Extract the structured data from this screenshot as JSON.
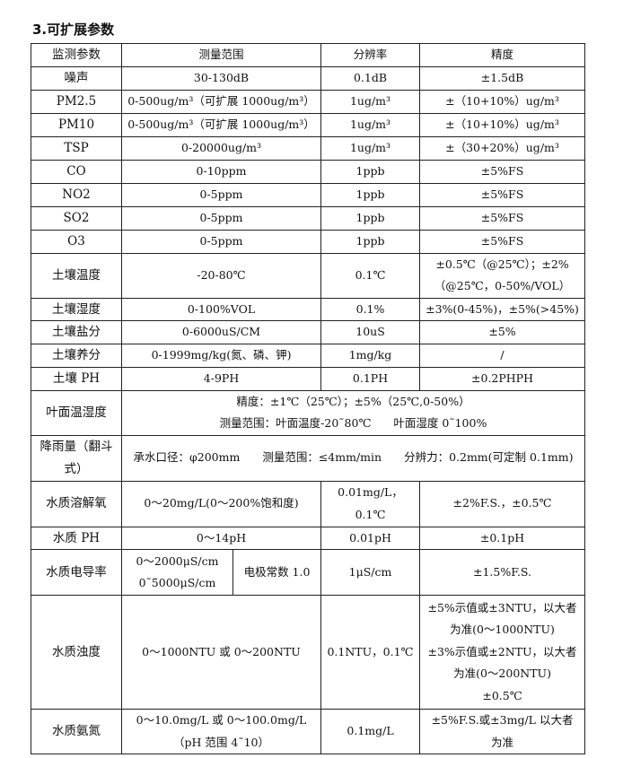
{
  "section_title": "3.可扩展参数",
  "table": {
    "rows": [
      {
        "h": 26,
        "cells": [
          {
            "lines": [
              "监测参数"
            ]
          },
          {
            "lines": [
              "测量范围"
            ],
            "colspan": 2
          },
          {
            "lines": [
              "分辨率"
            ]
          },
          {
            "lines": [
              "精度"
            ]
          }
        ]
      },
      {
        "h": 26,
        "cells": [
          {
            "lines": [
              "噪声"
            ]
          },
          {
            "lines": [
              "30-130dB"
            ],
            "colspan": 2
          },
          {
            "lines": [
              "0.1dB"
            ]
          },
          {
            "lines": [
              "±1.5dB"
            ]
          }
        ]
      },
      {
        "h": 26,
        "cells": [
          {
            "lines": [
              "PM2.5"
            ]
          },
          {
            "lines": [
              "0-500ug/m³（可扩展 1000ug/m³）"
            ],
            "colspan": 2
          },
          {
            "lines": [
              "1ug/m³"
            ]
          },
          {
            "lines": [
              "±（10+10%）ug/m³"
            ]
          }
        ]
      },
      {
        "h": 26,
        "cells": [
          {
            "lines": [
              "PM10"
            ]
          },
          {
            "lines": [
              "0-500ug/m³（可扩展 1000ug/m³）"
            ],
            "colspan": 2
          },
          {
            "lines": [
              "1ug/m³"
            ]
          },
          {
            "lines": [
              "±（10+10%）ug/m³"
            ]
          }
        ]
      },
      {
        "h": 26,
        "cells": [
          {
            "lines": [
              "TSP"
            ]
          },
          {
            "lines": [
              "0-20000ug/m³"
            ],
            "colspan": 2
          },
          {
            "lines": [
              "1ug/m³"
            ]
          },
          {
            "lines": [
              "±（30+20%）ug/m³"
            ]
          }
        ]
      },
      {
        "h": 25,
        "cells": [
          {
            "lines": [
              "CO"
            ]
          },
          {
            "lines": [
              "0-10ppm"
            ],
            "colspan": 2
          },
          {
            "lines": [
              "1ppb"
            ]
          },
          {
            "lines": [
              "±5%FS"
            ]
          }
        ]
      },
      {
        "h": 26,
        "cells": [
          {
            "lines": [
              "NO2"
            ]
          },
          {
            "lines": [
              "0-5ppm"
            ],
            "colspan": 2
          },
          {
            "lines": [
              "1ppb"
            ]
          },
          {
            "lines": [
              "±5%FS"
            ]
          }
        ]
      },
      {
        "h": 26,
        "cells": [
          {
            "lines": [
              "SO2"
            ]
          },
          {
            "lines": [
              "0-5ppm"
            ],
            "colspan": 2
          },
          {
            "lines": [
              "1ppb"
            ]
          },
          {
            "lines": [
              "±5%FS"
            ]
          }
        ]
      },
      {
        "h": 26,
        "cells": [
          {
            "lines": [
              "O3"
            ]
          },
          {
            "lines": [
              "0-5ppm"
            ],
            "colspan": 2
          },
          {
            "lines": [
              "1ppb"
            ]
          },
          {
            "lines": [
              "±5%FS"
            ]
          }
        ]
      },
      {
        "h": 49,
        "cells": [
          {
            "lines": [
              "土壤温度"
            ]
          },
          {
            "lines": [
              "-20-80℃"
            ],
            "colspan": 2
          },
          {
            "lines": [
              "0.1℃"
            ]
          },
          {
            "lines": [
              "±0.5℃（@25℃）；±2%",
              "（@25℃，0-50%/VOL）"
            ]
          }
        ]
      },
      {
        "h": 25,
        "cells": [
          {
            "lines": [
              "土壤湿度"
            ]
          },
          {
            "lines": [
              "0-100%VOL"
            ],
            "colspan": 2
          },
          {
            "lines": [
              "0.1%"
            ]
          },
          {
            "lines": [
              "±3%(0-45%)，±5%(>45%)"
            ]
          }
        ]
      },
      {
        "h": 26,
        "cells": [
          {
            "lines": [
              "土壤盐分"
            ]
          },
          {
            "lines": [
              "0-6000uS/CM"
            ],
            "colspan": 2
          },
          {
            "lines": [
              "10uS"
            ]
          },
          {
            "lines": [
              "±5%"
            ]
          }
        ]
      },
      {
        "h": 26,
        "cells": [
          {
            "lines": [
              "土壤养分"
            ]
          },
          {
            "lines": [
              "0-1999mg/kg(氮、磷、钾)"
            ],
            "colspan": 2
          },
          {
            "lines": [
              "1mg/kg"
            ]
          },
          {
            "lines": [
              "/"
            ]
          }
        ]
      },
      {
        "h": 25,
        "cells": [
          {
            "lines": [
              "土壤 PH"
            ]
          },
          {
            "lines": [
              "4-9PH"
            ],
            "colspan": 2
          },
          {
            "lines": [
              "0.1PH"
            ]
          },
          {
            "lines": [
              "±0.2PHPH"
            ]
          }
        ]
      },
      {
        "h": 50,
        "cells": [
          {
            "lines": [
              "叶面温湿度"
            ]
          },
          {
            "lines": [
              "精度：±1℃（25℃）；±5%（25℃,0-50%）",
              "测量范围：叶面温度-20˜80℃　　叶面湿度 0˜100%"
            ],
            "colspan": 4
          }
        ]
      },
      {
        "h": 51,
        "cells": [
          {
            "lines": [
              "降雨量（翻斗式）"
            ]
          },
          {
            "lines": [
              "承水口径：φ200mm　　测量范围：≤4mm/min　　分辨力：0.2mm(可定制 0.1mm)"
            ],
            "colspan": 4
          }
        ]
      },
      {
        "h": 51,
        "cells": [
          {
            "lines": [
              "水质溶解氧"
            ]
          },
          {
            "lines": [
              "0～20mg/L(0～200%饱和度)"
            ],
            "colspan": 2
          },
          {
            "lines": [
              "0.01mg/L，",
              "0.1℃"
            ]
          },
          {
            "lines": [
              "±2%F.S.，±0.5℃"
            ]
          }
        ]
      },
      {
        "h": 25,
        "cells": [
          {
            "lines": [
              "水质 PH"
            ]
          },
          {
            "lines": [
              "0～14pH"
            ],
            "colspan": 2
          },
          {
            "lines": [
              "0.01pH"
            ]
          },
          {
            "lines": [
              "±0.1pH"
            ]
          }
        ]
      },
      {
        "h": 51,
        "cells": [
          {
            "lines": [
              "水质电导率"
            ]
          },
          {
            "lines": [
              "0～2000μS/cm",
              "0˜5000μS/cm"
            ]
          },
          {
            "lines": [
              "电极常数 1.0"
            ]
          },
          {
            "lines": [
              "1μS/cm"
            ]
          },
          {
            "lines": [
              "±1.5%F.S."
            ]
          }
        ]
      },
      {
        "h": 127,
        "cells": [
          {
            "lines": [
              "水质浊度"
            ]
          },
          {
            "lines": [
              "0～1000NTU 或 0～200NTU"
            ],
            "colspan": 2
          },
          {
            "lines": [
              "0.1NTU，0.1℃"
            ]
          },
          {
            "lines": [
              "±5%示值或±3NTU，以大者",
              "为准(0～1000NTU)",
              "±3%示值或±2NTU，以大者",
              "为准(0～200NTU)",
              "±0.5℃"
            ]
          }
        ]
      },
      {
        "h": 50,
        "cells": [
          {
            "lines": [
              "水质氨氮"
            ]
          },
          {
            "lines": [
              "0～10.0mg/L 或 0～100.0mg/L",
              "（pH 范围 4˜10）"
            ],
            "colspan": 2
          },
          {
            "lines": [
              "0.1mg/L"
            ]
          },
          {
            "lines": [
              "±5%F.S.或±3mg/L 以大者",
              "为准"
            ]
          }
        ]
      }
    ]
  }
}
